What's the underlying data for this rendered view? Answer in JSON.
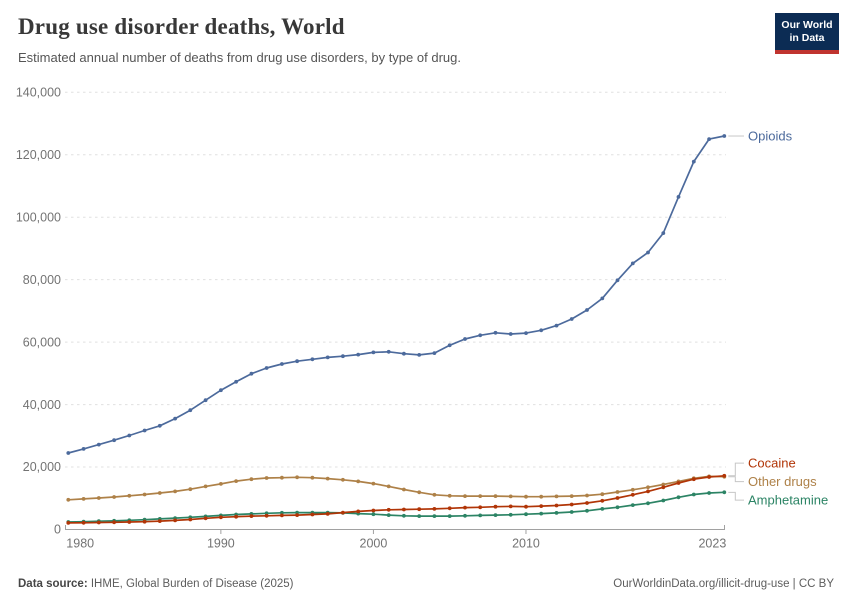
{
  "header": {
    "title": "Drug use disorder deaths, World",
    "subtitle": "Estimated annual number of deaths from drug use disorders, by type of drug.",
    "logo": {
      "line1": "Our World",
      "line2": "in Data",
      "bg": "#0C2C54",
      "bar": "#C0342F"
    }
  },
  "footer": {
    "source_label": "Data source:",
    "source_value": " IHME, Global Burden of Disease (2025)",
    "credit": "OurWorldinData.org/illicit-drug-use | CC BY"
  },
  "chart_data": {
    "type": "line",
    "title": "Drug use disorder deaths, World",
    "xlabel": "",
    "ylabel": "",
    "ylim": [
      0,
      140000
    ],
    "yticks": [
      0,
      20000,
      40000,
      60000,
      80000,
      100000,
      120000,
      140000
    ],
    "xticks": [
      1980,
      1990,
      2000,
      2010,
      2023
    ],
    "grid": "horizontal dashed",
    "legend_position": "right of line ends",
    "x": [
      1980,
      1981,
      1982,
      1983,
      1984,
      1985,
      1986,
      1987,
      1988,
      1989,
      1990,
      1991,
      1992,
      1993,
      1994,
      1995,
      1996,
      1997,
      1998,
      1999,
      2000,
      2001,
      2002,
      2003,
      2004,
      2005,
      2006,
      2007,
      2008,
      2009,
      2010,
      2011,
      2012,
      2013,
      2014,
      2015,
      2016,
      2017,
      2018,
      2019,
      2020,
      2021,
      2022,
      2023
    ],
    "series": [
      {
        "name": "Opioids",
        "color": "#4C6A9C",
        "values": [
          24500,
          25800,
          27200,
          28600,
          30100,
          31700,
          33200,
          35500,
          38200,
          41400,
          44600,
          47300,
          49900,
          51700,
          53000,
          53900,
          54500,
          55100,
          55500,
          56000,
          56700,
          56900,
          56300,
          55900,
          56500,
          59000,
          61000,
          62200,
          63000,
          62600,
          62900,
          63800,
          65300,
          67400,
          70300,
          74000,
          79800,
          85200,
          88700,
          94900,
          106500,
          117800,
          125000,
          126000
        ]
      },
      {
        "name": "Cocaine",
        "color": "#B13507",
        "values": [
          2100,
          2150,
          2250,
          2300,
          2400,
          2500,
          2700,
          2900,
          3200,
          3600,
          3900,
          4100,
          4300,
          4400,
          4500,
          4600,
          4800,
          5000,
          5400,
          5800,
          6100,
          6300,
          6400,
          6500,
          6600,
          6800,
          7000,
          7100,
          7300,
          7400,
          7300,
          7500,
          7700,
          8000,
          8500,
          9200,
          10100,
          11100,
          12200,
          13500,
          14900,
          16100,
          16800,
          17200
        ]
      },
      {
        "name": "Other drugs",
        "color": "#AE8148",
        "values": [
          9500,
          9800,
          10100,
          10400,
          10800,
          11200,
          11700,
          12200,
          12900,
          13800,
          14600,
          15500,
          16100,
          16500,
          16600,
          16700,
          16600,
          16300,
          15900,
          15400,
          14700,
          13800,
          12800,
          11900,
          11100,
          10800,
          10700,
          10700,
          10700,
          10600,
          10500,
          10500,
          10600,
          10700,
          10900,
          11300,
          12000,
          12700,
          13500,
          14400,
          15400,
          16400,
          17000,
          16900
        ]
      },
      {
        "name": "Amphetamine",
        "color": "#2C8465",
        "values": [
          2400,
          2500,
          2650,
          2800,
          2950,
          3150,
          3400,
          3650,
          3900,
          4200,
          4500,
          4800,
          5000,
          5200,
          5350,
          5400,
          5400,
          5400,
          5300,
          5100,
          4900,
          4600,
          4400,
          4300,
          4300,
          4300,
          4400,
          4500,
          4600,
          4700,
          4900,
          5100,
          5300,
          5600,
          6000,
          6600,
          7100,
          7800,
          8400,
          9300,
          10300,
          11200,
          11700,
          11900
        ]
      }
    ]
  }
}
